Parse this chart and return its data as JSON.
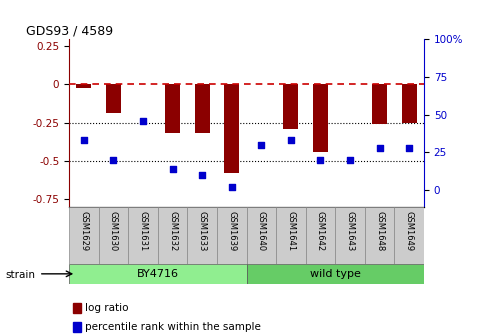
{
  "title": "GDS93 / 4589",
  "samples": [
    "GSM1629",
    "GSM1630",
    "GSM1631",
    "GSM1632",
    "GSM1633",
    "GSM1639",
    "GSM1640",
    "GSM1641",
    "GSM1642",
    "GSM1643",
    "GSM1648",
    "GSM1649"
  ],
  "log_ratio": [
    -0.02,
    -0.19,
    0.0,
    -0.32,
    -0.32,
    -0.58,
    0.0,
    -0.29,
    -0.44,
    0.0,
    -0.26,
    -0.25
  ],
  "percentile_rank": [
    33,
    20,
    46,
    14,
    10,
    2,
    30,
    33,
    20,
    20,
    28,
    28
  ],
  "bar_color": "#8b0000",
  "dot_color": "#0000cc",
  "ref_line_color": "#cc0000",
  "bg_color": "#ffffff",
  "ylim_left": [
    -0.8,
    0.3
  ],
  "ylim_right": [
    -10.67,
    100
  ],
  "yticks_left": [
    0.25,
    0.0,
    -0.25,
    -0.5,
    -0.75
  ],
  "yticks_right": [
    100,
    75,
    50,
    25,
    0
  ],
  "ytick_labels_left": [
    "0.25",
    "0",
    "-0.25",
    "-0.5",
    "-0.75"
  ],
  "ytick_labels_right": [
    "100%",
    "75",
    "50",
    "25",
    "0"
  ],
  "strain_groups": [
    {
      "label": "BY4716",
      "start": 0,
      "end": 6,
      "color": "#90ee90"
    },
    {
      "label": "wild type",
      "start": 6,
      "end": 12,
      "color": "#66cc66"
    }
  ],
  "strain_label": "strain",
  "legend_items": [
    {
      "color": "#8b0000",
      "label": "log ratio"
    },
    {
      "color": "#0000cc",
      "label": "percentile rank within the sample"
    }
  ],
  "hline_ref_style": {
    "color": "#cc0000",
    "lw": 1.2,
    "ls": "--"
  },
  "hline_grid_style": {
    "color": "#000000",
    "lw": 0.8,
    "ls": ":"
  },
  "bar_width": 0.5,
  "dot_size": 18,
  "label_bg_color": "#cccccc"
}
